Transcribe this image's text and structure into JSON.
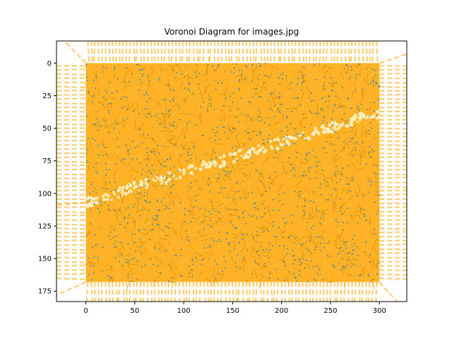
{
  "chart_data": {
    "type": "scatter",
    "title": "Voronoi Diagram for images.jpg",
    "xlabel": "",
    "ylabel": "",
    "xlim": [
      -30,
      328
    ],
    "ylim": [
      183,
      -17
    ],
    "y_inverted": true,
    "xticks": [
      0,
      50,
      100,
      150,
      200,
      250,
      300
    ],
    "yticks": [
      0,
      25,
      50,
      75,
      100,
      125,
      150,
      175
    ],
    "grid": false,
    "legend": "none",
    "point_region": {
      "x": [
        0,
        300
      ],
      "y": [
        0,
        168
      ]
    },
    "highlight_streak": {
      "from": [
        0,
        107
      ],
      "to": [
        300,
        38
      ]
    },
    "colors": {
      "edges": "#ffa500",
      "points": "#1f77b4",
      "axes": "#000000"
    }
  }
}
